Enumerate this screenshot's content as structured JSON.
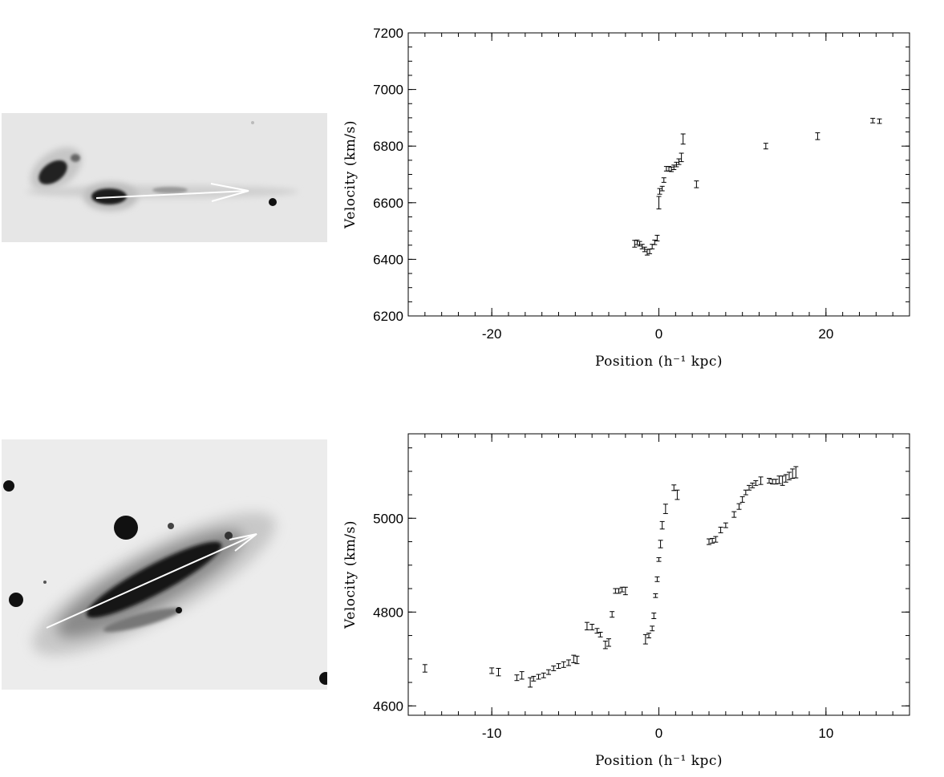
{
  "chart_data": [
    {
      "type": "scatter",
      "xlabel": "Position (h⁻¹ kpc)",
      "ylabel": "Velocity (km/s)",
      "xlim": [
        -30,
        30
      ],
      "ylim": [
        6200,
        7200
      ],
      "x_ticks": [
        -20,
        0,
        20
      ],
      "x_tick_labels": [
        "-20",
        "0",
        "20"
      ],
      "y_ticks": [
        6200,
        6400,
        6600,
        6800,
        7000,
        7200
      ],
      "y_tick_labels": [
        "6200",
        "6400",
        "6600",
        "6800",
        "7000",
        "7200"
      ],
      "error_bars": true,
      "series": [
        {
          "points": [
            {
              "x": -2.9,
              "y": 6455,
              "err": 12
            },
            {
              "x": -2.6,
              "y": 6460,
              "err": 8
            },
            {
              "x": -2.3,
              "y": 6455,
              "err": 8
            },
            {
              "x": -2.0,
              "y": 6445,
              "err": 8
            },
            {
              "x": -1.7,
              "y": 6435,
              "err": 8
            },
            {
              "x": -1.4,
              "y": 6425,
              "err": 10
            },
            {
              "x": -1.1,
              "y": 6428,
              "err": 8
            },
            {
              "x": -0.8,
              "y": 6445,
              "err": 8
            },
            {
              "x": -0.5,
              "y": 6460,
              "err": 8
            },
            {
              "x": -0.2,
              "y": 6475,
              "err": 10
            },
            {
              "x": 0.0,
              "y": 6600,
              "err": 22
            },
            {
              "x": 0.1,
              "y": 6640,
              "err": 10
            },
            {
              "x": 0.4,
              "y": 6650,
              "err": 8
            },
            {
              "x": 0.6,
              "y": 6680,
              "err": 8
            },
            {
              "x": 0.9,
              "y": 6720,
              "err": 8
            },
            {
              "x": 1.2,
              "y": 6720,
              "err": 8
            },
            {
              "x": 1.5,
              "y": 6718,
              "err": 8
            },
            {
              "x": 1.8,
              "y": 6725,
              "err": 8
            },
            {
              "x": 2.1,
              "y": 6735,
              "err": 8
            },
            {
              "x": 2.4,
              "y": 6745,
              "err": 10
            },
            {
              "x": 2.7,
              "y": 6760,
              "err": 15
            },
            {
              "x": 2.9,
              "y": 6825,
              "err": 18
            },
            {
              "x": 4.5,
              "y": 6665,
              "err": 12
            },
            {
              "x": 12.8,
              "y": 6800,
              "err": 10
            },
            {
              "x": 19.0,
              "y": 6835,
              "err": 12
            },
            {
              "x": 25.6,
              "y": 6890,
              "err": 8
            },
            {
              "x": 26.4,
              "y": 6888,
              "err": 8
            }
          ]
        }
      ]
    },
    {
      "type": "scatter",
      "xlabel": "Position (h⁻¹ kpc)",
      "ylabel": "Velocity (km/s)",
      "xlim": [
        -15,
        15
      ],
      "ylim": [
        4580,
        5180
      ],
      "x_ticks": [
        -10,
        0,
        10
      ],
      "x_tick_labels": [
        "-10",
        "0",
        "10"
      ],
      "y_ticks": [
        4600,
        4800,
        5000
      ],
      "y_tick_labels": [
        "4600",
        "4800",
        "5000"
      ],
      "error_bars": true,
      "series": [
        {
          "points": [
            {
              "x": -14.0,
              "y": 4680,
              "err": 8
            },
            {
              "x": -10.0,
              "y": 4675,
              "err": 6
            },
            {
              "x": -9.6,
              "y": 4672,
              "err": 8
            },
            {
              "x": -8.5,
              "y": 4660,
              "err": 6
            },
            {
              "x": -8.2,
              "y": 4665,
              "err": 8
            },
            {
              "x": -7.7,
              "y": 4650,
              "err": 10
            },
            {
              "x": -7.5,
              "y": 4658,
              "err": 5
            },
            {
              "x": -7.2,
              "y": 4662,
              "err": 5
            },
            {
              "x": -6.9,
              "y": 4665,
              "err": 5
            },
            {
              "x": -6.6,
              "y": 4672,
              "err": 5
            },
            {
              "x": -6.3,
              "y": 4680,
              "err": 5
            },
            {
              "x": -6.0,
              "y": 4685,
              "err": 5
            },
            {
              "x": -5.7,
              "y": 4688,
              "err": 6
            },
            {
              "x": -5.4,
              "y": 4692,
              "err": 6
            },
            {
              "x": -5.1,
              "y": 4700,
              "err": 8
            },
            {
              "x": -4.9,
              "y": 4698,
              "err": 8
            },
            {
              "x": -4.3,
              "y": 4770,
              "err": 8
            },
            {
              "x": -4.0,
              "y": 4768,
              "err": 6
            },
            {
              "x": -3.7,
              "y": 4760,
              "err": 5
            },
            {
              "x": -3.5,
              "y": 4752,
              "err": 5
            },
            {
              "x": -3.2,
              "y": 4730,
              "err": 8
            },
            {
              "x": -3.0,
              "y": 4735,
              "err": 8
            },
            {
              "x": -2.8,
              "y": 4795,
              "err": 6
            },
            {
              "x": -2.6,
              "y": 4845,
              "err": 5
            },
            {
              "x": -2.4,
              "y": 4845,
              "err": 5
            },
            {
              "x": -2.2,
              "y": 4848,
              "err": 5
            },
            {
              "x": -2.0,
              "y": 4845,
              "err": 8
            },
            {
              "x": -0.8,
              "y": 4742,
              "err": 10
            },
            {
              "x": -0.6,
              "y": 4750,
              "err": 5
            },
            {
              "x": -0.4,
              "y": 4765,
              "err": 5
            },
            {
              "x": -0.3,
              "y": 4792,
              "err": 6
            },
            {
              "x": -0.2,
              "y": 4835,
              "err": 4
            },
            {
              "x": -0.1,
              "y": 4870,
              "err": 5
            },
            {
              "x": 0.0,
              "y": 4912,
              "err": 4
            },
            {
              "x": 0.1,
              "y": 4945,
              "err": 8
            },
            {
              "x": 0.2,
              "y": 4985,
              "err": 8
            },
            {
              "x": 0.4,
              "y": 5020,
              "err": 10
            },
            {
              "x": 0.9,
              "y": 5065,
              "err": 6
            },
            {
              "x": 1.1,
              "y": 5050,
              "err": 10
            },
            {
              "x": 3.0,
              "y": 4950,
              "err": 6
            },
            {
              "x": 3.2,
              "y": 4952,
              "err": 5
            },
            {
              "x": 3.4,
              "y": 4955,
              "err": 6
            },
            {
              "x": 3.7,
              "y": 4975,
              "err": 6
            },
            {
              "x": 4.0,
              "y": 4985,
              "err": 5
            },
            {
              "x": 4.5,
              "y": 5008,
              "err": 6
            },
            {
              "x": 4.8,
              "y": 5025,
              "err": 6
            },
            {
              "x": 5.0,
              "y": 5040,
              "err": 6
            },
            {
              "x": 5.2,
              "y": 5055,
              "err": 5
            },
            {
              "x": 5.4,
              "y": 5065,
              "err": 5
            },
            {
              "x": 5.6,
              "y": 5070,
              "err": 5
            },
            {
              "x": 5.8,
              "y": 5075,
              "err": 5
            },
            {
              "x": 6.1,
              "y": 5080,
              "err": 8
            },
            {
              "x": 6.6,
              "y": 5080,
              "err": 5
            },
            {
              "x": 6.8,
              "y": 5078,
              "err": 5
            },
            {
              "x": 7.0,
              "y": 5078,
              "err": 5
            },
            {
              "x": 7.2,
              "y": 5082,
              "err": 8
            },
            {
              "x": 7.4,
              "y": 5080,
              "err": 10
            },
            {
              "x": 7.6,
              "y": 5085,
              "err": 8
            },
            {
              "x": 7.8,
              "y": 5090,
              "err": 8
            },
            {
              "x": 8.0,
              "y": 5095,
              "err": 10
            },
            {
              "x": 8.2,
              "y": 5098,
              "err": 12
            }
          ]
        }
      ]
    }
  ],
  "images": [
    {
      "name": "galaxy-image-top",
      "description_icon": "galaxy-pair-image"
    },
    {
      "name": "galaxy-image-bottom",
      "description_icon": "edge-on-galaxy-image"
    }
  ]
}
